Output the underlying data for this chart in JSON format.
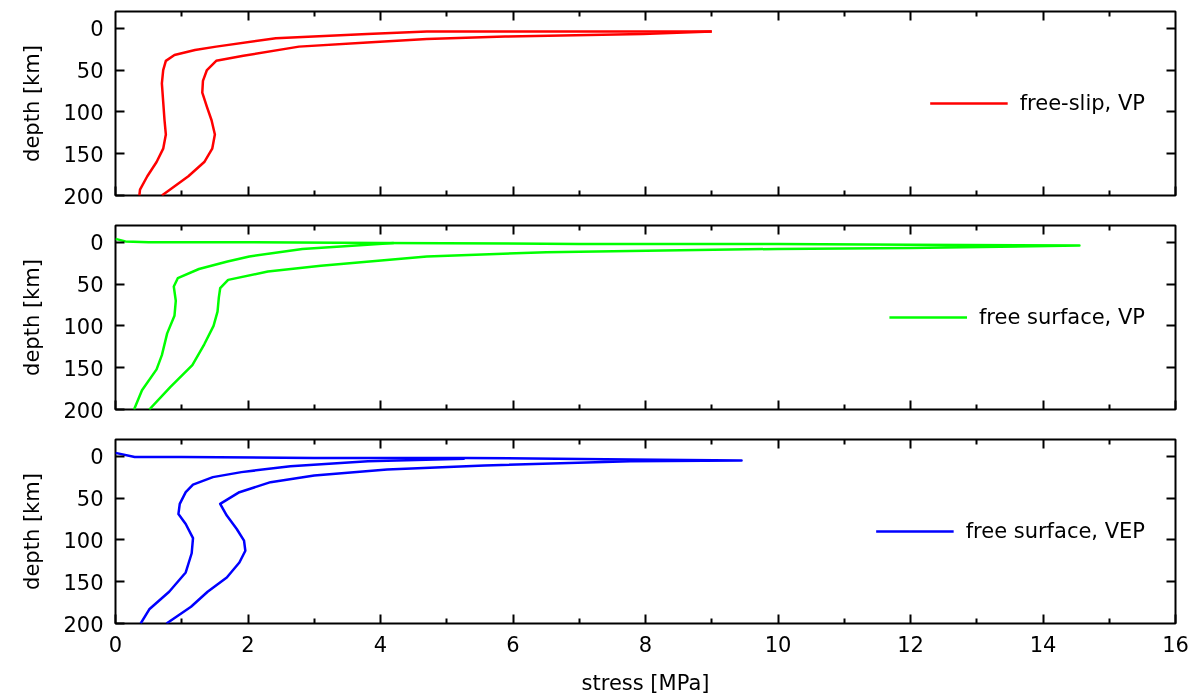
{
  "chart_data": [
    {
      "type": "line",
      "ylabel": "depth [km]",
      "xlim": [
        0,
        16
      ],
      "xticks": [
        0,
        {
          "value": 1,
          "label": null
        },
        2,
        {
          "value": 3,
          "label": null
        },
        4,
        {
          "value": 5,
          "label": null
        },
        6,
        {
          "value": 7,
          "label": null
        },
        8,
        {
          "value": 9,
          "label": null
        },
        10,
        {
          "value": 11,
          "label": null
        },
        12,
        {
          "value": 13,
          "label": null
        },
        14,
        {
          "value": 15,
          "label": null
        },
        16
      ],
      "ylim": [
        200,
        -20
      ],
      "yticks": [
        0,
        50,
        100,
        150,
        200
      ],
      "tick_labels": "y",
      "legend": "right",
      "series": [
        {
          "name": "free-slip, VP",
          "color": "#ff0000",
          "x": [
            9.0,
            7.96,
            4.7,
            3.8,
            2.42,
            1.52,
            1.2,
            0.89,
            0.76,
            0.72,
            0.7,
            0.72,
            0.74,
            0.76,
            0.72,
            0.62,
            0.48,
            0.37,
            0.36
          ],
          "values": [
            4,
            4,
            4,
            7,
            12,
            22,
            26,
            32,
            39,
            50,
            66,
            88,
            110,
            127,
            144,
            160,
            177,
            193,
            200
          ]
        },
        {
          "color": "#ff0000",
          "x": [
            9.0,
            7.96,
            5.88,
            4.7,
            3.8,
            2.77,
            1.93,
            1.52,
            1.38,
            1.32,
            1.31,
            1.38,
            1.45,
            1.5,
            1.46,
            1.34,
            1.1,
            0.82,
            0.7
          ],
          "values": [
            4,
            7,
            10,
            13,
            17,
            22,
            33,
            39,
            50,
            63,
            77,
            94,
            110,
            127,
            144,
            160,
            177,
            193,
            200
          ]
        }
      ]
    },
    {
      "type": "line",
      "ylabel": "depth [km]",
      "xlim": [
        0,
        16
      ],
      "xticks": [
        0,
        {
          "value": 1,
          "label": null
        },
        2,
        {
          "value": 3,
          "label": null
        },
        4,
        {
          "value": 5,
          "label": null
        },
        6,
        {
          "value": 7,
          "label": null
        },
        8,
        {
          "value": 9,
          "label": null
        },
        10,
        {
          "value": 11,
          "label": null
        },
        12,
        {
          "value": 13,
          "label": null
        },
        14,
        {
          "value": 15,
          "label": null
        },
        16
      ],
      "ylim": [
        200,
        -20
      ],
      "yticks": [
        0,
        50,
        100,
        150,
        200
      ],
      "tick_labels": "y",
      "legend": "right",
      "series": [
        {
          "name": "free surface, VP",
          "color": "#00ff00",
          "x": [
            0,
            0.15,
            0.5,
            2,
            4,
            7,
            10,
            12,
            14.55,
            12,
            10,
            6.5,
            4.7,
            3.1,
            2.3,
            1.7,
            1.58,
            1.56,
            1.54,
            1.48,
            1.34,
            1.16,
            0.83,
            0.51
          ],
          "values": [
            -4,
            -1,
            0,
            0,
            1,
            2,
            2,
            3,
            4,
            7,
            8,
            12,
            17,
            28,
            35,
            45,
            55,
            66,
            83,
            100,
            122,
            147,
            173,
            200
          ]
        },
        {
          "color": "#00ff00",
          "x": [
            4.2,
            3.63,
            2.82,
            2.02,
            1.69,
            1.26,
            0.94,
            0.88,
            0.91,
            0.89,
            0.78,
            0.7,
            0.62,
            0.4,
            0.28
          ],
          "values": [
            1,
            4,
            8,
            17,
            23,
            32,
            43,
            53,
            70,
            88,
            109,
            135,
            152,
            177,
            200
          ]
        }
      ]
    },
    {
      "type": "line",
      "xlabel": "stress [MPa]",
      "ylabel": "depth [km]",
      "xlim": [
        0,
        16
      ],
      "xticks": [
        0,
        {
          "value": 1,
          "label": null
        },
        2,
        {
          "value": 3,
          "label": null
        },
        4,
        {
          "value": 5,
          "label": null
        },
        6,
        {
          "value": 7,
          "label": null
        },
        8,
        {
          "value": 9,
          "label": null
        },
        10,
        {
          "value": 11,
          "label": null
        },
        12,
        {
          "value": 13,
          "label": null
        },
        14,
        {
          "value": 15,
          "label": null
        },
        16
      ],
      "ylim": [
        200,
        -20
      ],
      "yticks": [
        0,
        50,
        100,
        150,
        200
      ],
      "legend": "right",
      "series": [
        {
          "name": "free surface, VEP",
          "color": "#0000ff",
          "x": [
            0,
            0.29,
            1,
            3,
            5.3,
            7.77,
            9.45,
            7.77,
            5.57,
            4.1,
            3.0,
            2.34,
            1.87,
            1.58,
            1.68,
            1.83,
            1.94,
            1.96,
            1.87,
            1.68,
            1.39,
            1.14,
            0.77
          ],
          "values": [
            -4,
            1,
            1,
            2,
            2,
            4,
            5,
            6,
            11,
            16,
            23,
            31,
            43,
            57,
            71,
            87,
            101,
            113,
            127,
            145,
            162,
            180,
            200
          ]
        },
        {
          "color": "#0000ff",
          "x": [
            5.27,
            3.81,
            2.64,
            1.9,
            1.47,
            1.17,
            1.06,
            0.97,
            0.95,
            1.06,
            1.17,
            1.15,
            1.06,
            0.81,
            0.51,
            0.38
          ],
          "values": [
            3,
            6,
            12,
            19,
            25,
            34,
            43,
            57,
            69,
            81,
            98,
            116,
            139,
            162,
            183,
            200
          ]
        }
      ]
    }
  ]
}
